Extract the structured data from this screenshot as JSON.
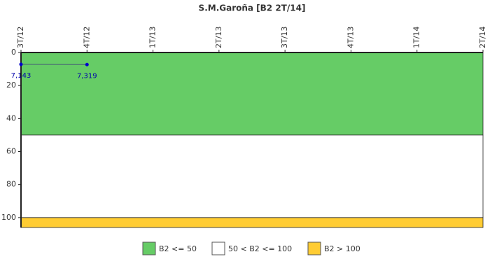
{
  "chart_data": {
    "type": "line",
    "title": "S.M.Garoña [B2 2T/14]",
    "categories": [
      "3T/12",
      "4T/12",
      "1T/13",
      "2T/13",
      "3T/13",
      "4T/13",
      "1T/14",
      "2T/14"
    ],
    "series": [
      {
        "name": "B2",
        "color": "#0000cc",
        "values": [
          7.143,
          7.319,
          null,
          null,
          null,
          null,
          null,
          null
        ],
        "value_labels": [
          "7,143",
          "7,319",
          null,
          null,
          null,
          null,
          null,
          null
        ]
      }
    ],
    "ylim": [
      0,
      106
    ],
    "yticks": [
      0,
      20,
      40,
      60,
      80,
      100
    ],
    "inverted": true,
    "bands": [
      {
        "name": "B2 <= 50",
        "color": "#66cc66",
        "from": 0,
        "to": 50
      },
      {
        "name": "50 < B2 <= 100",
        "color": "#ffffff",
        "from": 50,
        "to": 100
      },
      {
        "name": "B2 > 100",
        "color": "#ffcc33",
        "from": 100,
        "to": 106
      }
    ]
  }
}
